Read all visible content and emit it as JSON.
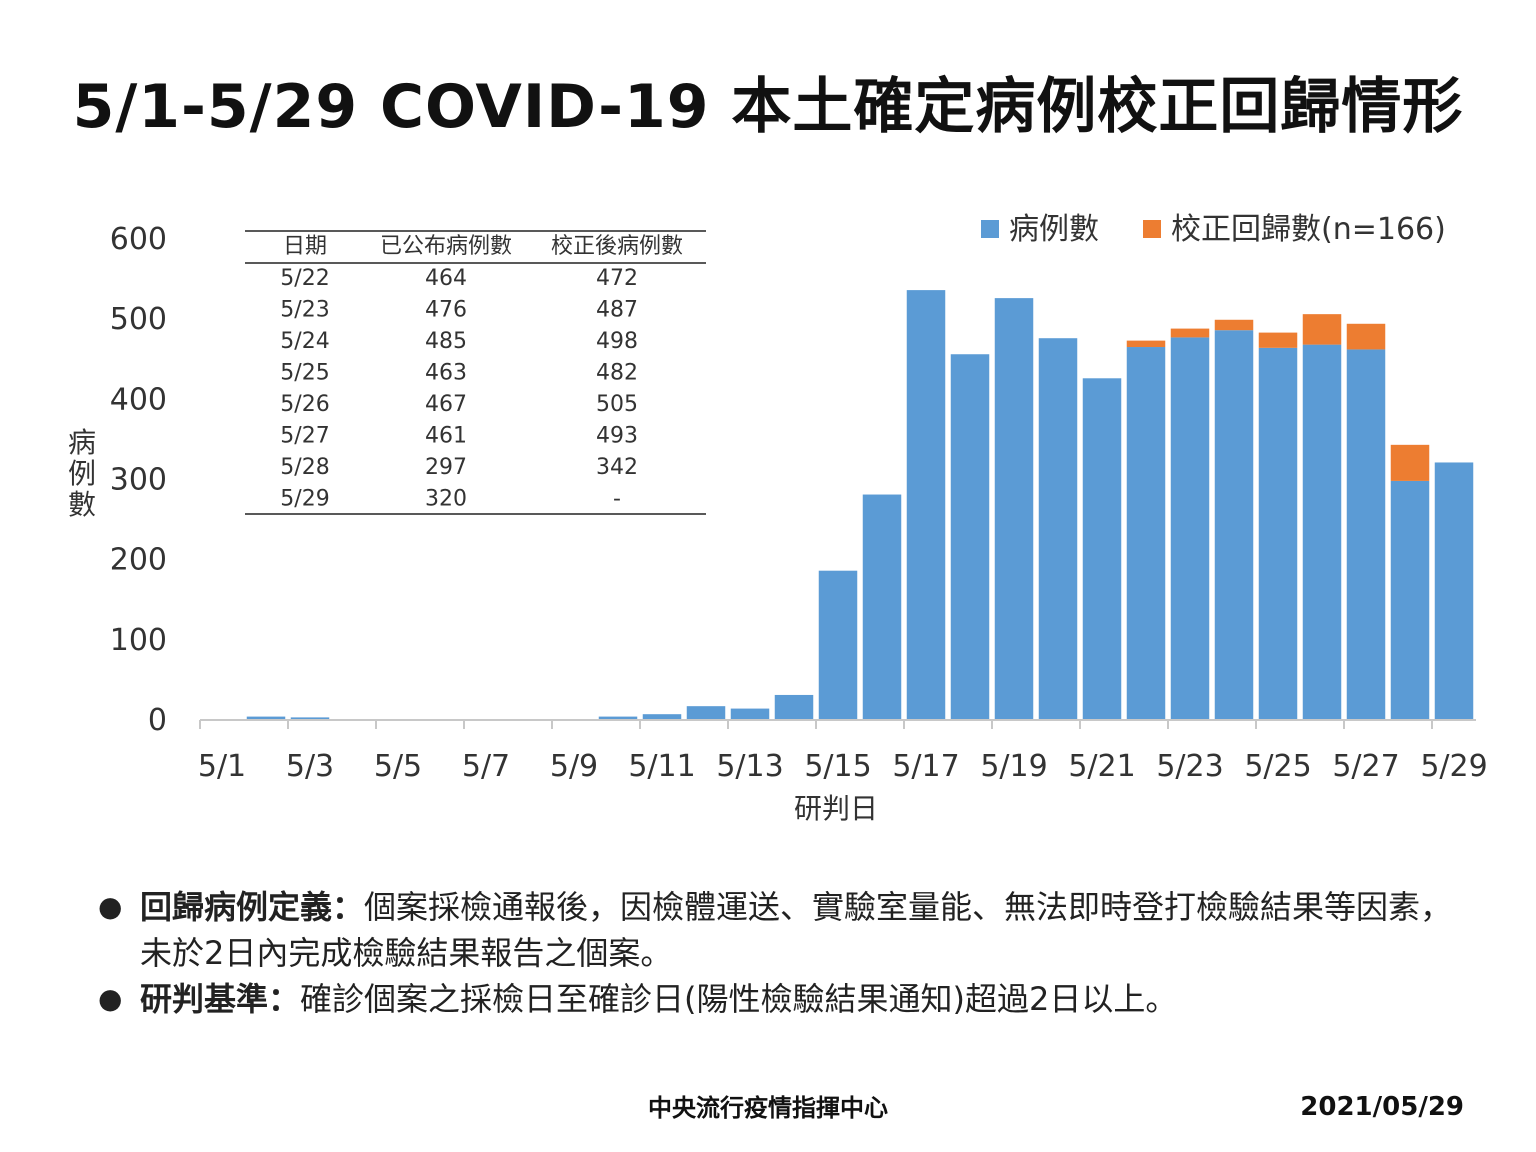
{
  "title": "5/1-5/29 COVID-19 本土確定病例校正回歸情形",
  "chart_data": {
    "type": "bar",
    "stacked": true,
    "categories": [
      "5/1",
      "5/2",
      "5/3",
      "5/4",
      "5/5",
      "5/6",
      "5/7",
      "5/8",
      "5/9",
      "5/10",
      "5/11",
      "5/12",
      "5/13",
      "5/14",
      "5/15",
      "5/16",
      "5/17",
      "5/18",
      "5/19",
      "5/20",
      "5/21",
      "5/22",
      "5/23",
      "5/24",
      "5/25",
      "5/26",
      "5/27",
      "5/28",
      "5/29"
    ],
    "x_tick_labels": [
      "5/1",
      "5/3",
      "5/5",
      "5/7",
      "5/9",
      "5/11",
      "5/13",
      "5/15",
      "5/17",
      "5/19",
      "5/21",
      "5/23",
      "5/25",
      "5/27",
      "5/29"
    ],
    "series": [
      {
        "name": "病例數",
        "color": "#5b9bd5",
        "values": [
          0,
          3,
          2,
          0,
          0,
          0,
          0,
          0,
          0,
          3,
          6,
          16,
          13,
          30,
          185,
          280,
          535,
          455,
          525,
          475,
          425,
          464,
          476,
          485,
          463,
          467,
          461,
          297,
          320
        ]
      },
      {
        "name": "校正回歸數(n=166)",
        "color": "#ed7d31",
        "values": [
          0,
          0,
          0,
          0,
          0,
          0,
          0,
          0,
          0,
          0,
          0,
          0,
          0,
          0,
          0,
          0,
          0,
          0,
          0,
          0,
          0,
          8,
          11,
          13,
          19,
          38,
          32,
          45,
          0
        ]
      }
    ],
    "ylabel": "病例數",
    "xlabel": "研判日",
    "ylim": [
      0,
      600
    ],
    "y_ticks": [
      0,
      100,
      200,
      300,
      400,
      500,
      600
    ],
    "grid": false,
    "legend_position": "top-right"
  },
  "table": {
    "headers": [
      "日期",
      "已公布病例數",
      "校正後病例數"
    ],
    "rows": [
      [
        "5/22",
        "464",
        "472"
      ],
      [
        "5/23",
        "476",
        "487"
      ],
      [
        "5/24",
        "485",
        "498"
      ],
      [
        "5/25",
        "463",
        "482"
      ],
      [
        "5/26",
        "467",
        "505"
      ],
      [
        "5/27",
        "461",
        "493"
      ],
      [
        "5/28",
        "297",
        "342"
      ],
      [
        "5/29",
        "320",
        "-"
      ]
    ]
  },
  "notes": [
    {
      "bold": "回歸病例定義：",
      "text": "個案採檢通報後，因檢體運送、實驗室量能、無法即時登打檢驗結果等因素，未於2日內完成檢驗結果報告之個案。"
    },
    {
      "bold": "研判基準：",
      "text": "確診個案之採檢日至確診日(陽性檢驗結果通知)超過2日以上。"
    }
  ],
  "footer": {
    "organization": "中央流行疫情指揮中心",
    "date": "2021/05/29"
  }
}
